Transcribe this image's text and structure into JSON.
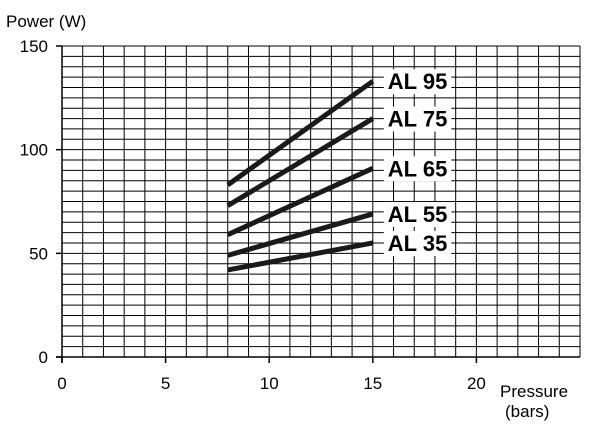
{
  "chart_data": {
    "type": "line",
    "ylabel": "Power (W)",
    "xlabel": "Pressure",
    "xlabel_unit": "(bars)",
    "xlim": [
      0,
      25
    ],
    "ylim": [
      0,
      150
    ],
    "xticks": [
      "0",
      "5",
      "10",
      "15",
      "20"
    ],
    "yticks": [
      "0",
      "50",
      "100",
      "150"
    ],
    "grid": true,
    "grid_minor_x": 1,
    "grid_minor_y": 5,
    "legend": "labels at line ends",
    "series": [
      {
        "name": "AL 95",
        "x": [
          8,
          15
        ],
        "y": [
          83,
          133
        ]
      },
      {
        "name": "AL 75",
        "x": [
          8,
          15
        ],
        "y": [
          73,
          115
        ]
      },
      {
        "name": "AL 65",
        "x": [
          8,
          15
        ],
        "y": [
          59,
          91
        ]
      },
      {
        "name": "AL 55",
        "x": [
          8,
          15
        ],
        "y": [
          49,
          69
        ]
      },
      {
        "name": "AL 35",
        "x": [
          8,
          15
        ],
        "y": [
          42,
          55
        ]
      }
    ]
  }
}
